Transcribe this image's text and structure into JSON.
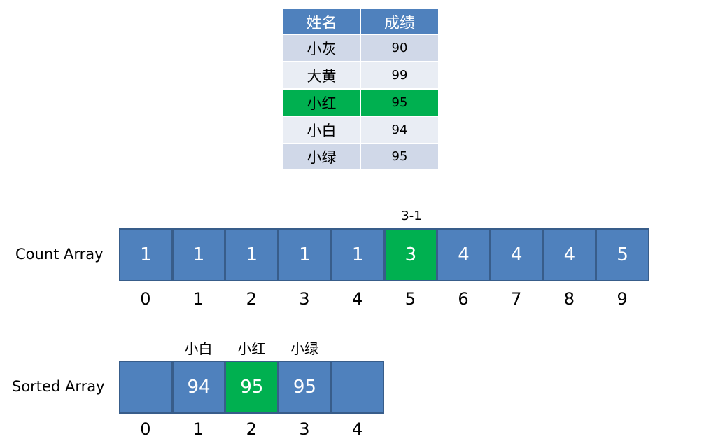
{
  "table": {
    "header": [
      "姓名",
      "成绩"
    ],
    "rows": [
      [
        "小灰",
        "90"
      ],
      [
        "大黄",
        "99"
      ],
      [
        "小红",
        "95"
      ],
      [
        "小白",
        "94"
      ],
      [
        "小绿",
        "95"
      ]
    ]
  },
  "count_array": {
    "label": "Count Array",
    "annotation": "3-1",
    "values": [
      "1",
      "1",
      "1",
      "1",
      "1",
      "3",
      "4",
      "4",
      "4",
      "5"
    ],
    "indices": [
      "0",
      "1",
      "2",
      "3",
      "4",
      "5",
      "6",
      "7",
      "8",
      "9"
    ]
  },
  "sorted_array": {
    "label": "Sorted Array",
    "names": [
      null,
      "小白",
      "小红",
      "小绿",
      null
    ],
    "values": [
      null,
      "94",
      "95",
      "95",
      null
    ],
    "indices": [
      "0",
      "1",
      "2",
      "3",
      "4"
    ]
  }
}
